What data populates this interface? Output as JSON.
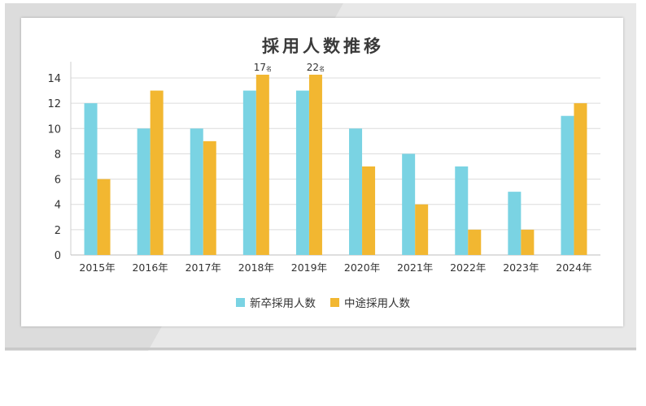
{
  "chart_data": {
    "type": "bar",
    "title": "採用人数推移",
    "categories": [
      "2015年",
      "2016年",
      "2017年",
      "2018年",
      "2019年",
      "2020年",
      "2021年",
      "2022年",
      "2023年",
      "2024年"
    ],
    "series": [
      {
        "name": "新卒採用人数",
        "color": "#7ad3e3",
        "values": [
          12,
          10,
          10,
          13,
          13,
          10,
          8,
          7,
          5,
          11
        ]
      },
      {
        "name": "中途採用人数",
        "color": "#f2b731",
        "values": [
          6,
          13,
          9,
          17,
          22,
          7,
          4,
          2,
          2,
          12
        ]
      }
    ],
    "yticks": [
      "0",
      "2",
      "4",
      "6",
      "8",
      "10",
      "12",
      "14"
    ],
    "ylim": [
      0,
      14
    ],
    "axis_break": true,
    "data_labels": [
      {
        "series": 1,
        "category": 3,
        "number": "17",
        "unit": "名"
      },
      {
        "series": 1,
        "category": 4,
        "number": "22",
        "unit": "名"
      }
    ],
    "grid": true,
    "legend_position": "bottom",
    "xlabel": "",
    "ylabel": ""
  }
}
